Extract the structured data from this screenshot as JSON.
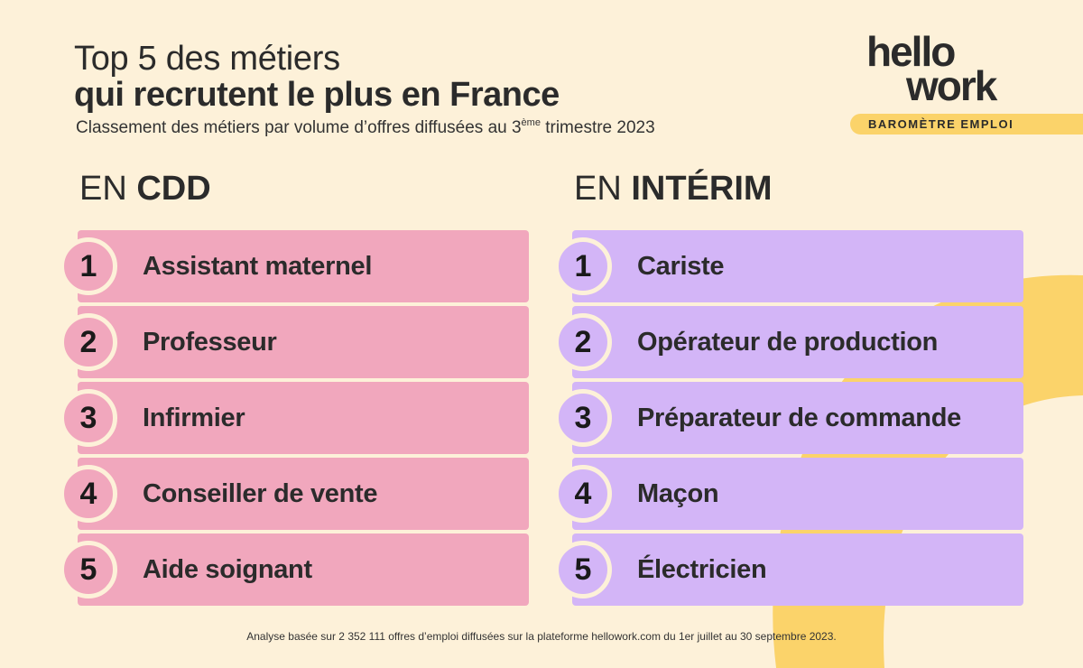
{
  "header": {
    "title_line1": "Top 5 des métiers",
    "title_line2": "qui recrutent le plus en France",
    "subtitle_pre": "Classement des métiers par volume d’offres diffusées au 3",
    "subtitle_sup": "ème",
    "subtitle_post": " trimestre 2023"
  },
  "logo": {
    "line1": "hello",
    "line2": "work",
    "badge": "BAROMÈTRE EMPLOI"
  },
  "columns": {
    "cdd": {
      "prefix": "EN ",
      "name": "CDD",
      "items": [
        {
          "rank": "1",
          "label": "Assistant maternel"
        },
        {
          "rank": "2",
          "label": "Professeur"
        },
        {
          "rank": "3",
          "label": "Infirmier"
        },
        {
          "rank": "4",
          "label": "Conseiller de vente"
        },
        {
          "rank": "5",
          "label": "Aide soignant"
        }
      ]
    },
    "interim": {
      "prefix": "EN ",
      "name": "INTÉRIM",
      "items": [
        {
          "rank": "1",
          "label": "Cariste"
        },
        {
          "rank": "2",
          "label": "Opérateur de production"
        },
        {
          "rank": "3",
          "label": "Préparateur de commande"
        },
        {
          "rank": "4",
          "label": "Maçon"
        },
        {
          "rank": "5",
          "label": "Électricien"
        }
      ]
    }
  },
  "footnote": "Analyse basée sur 2 352 111 offres d’emploi diffusées sur la plateforme hellowork.com du 1er juillet au 30 septembre 2023.",
  "colors": {
    "background": "#fdf1d9",
    "cdd_bar": "#f1a7bd",
    "interim_bar": "#d3b5f7",
    "accent_yellow": "#fbd36a"
  }
}
